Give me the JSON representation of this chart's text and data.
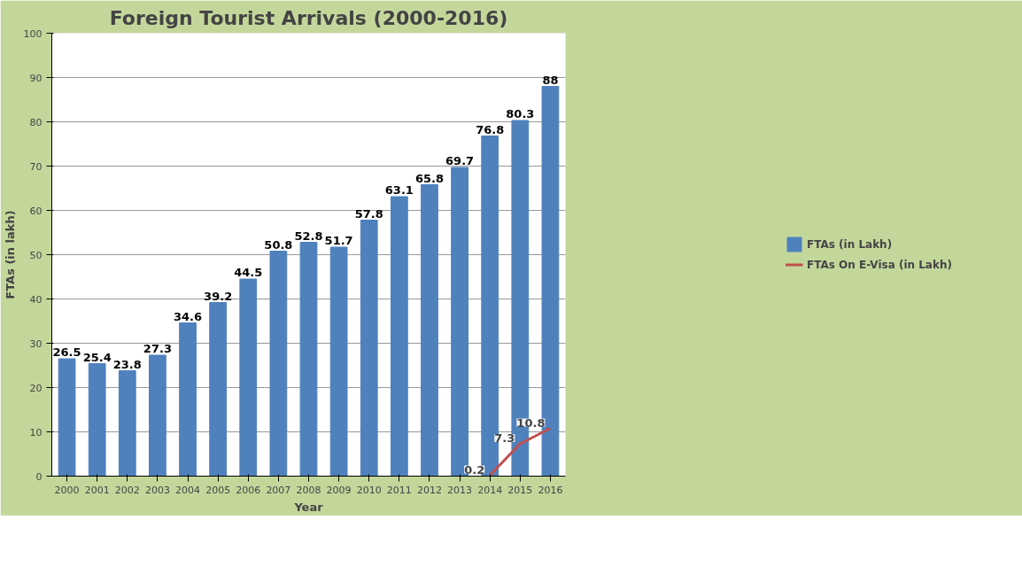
{
  "chart_data": {
    "type": "bar",
    "title": "Foreign Tourist Arrivals (2000-2016)",
    "xlabel": "Year",
    "ylabel": "FTAs (in lakh)",
    "categories": [
      "2000",
      "2001",
      "2002",
      "2003",
      "2004",
      "2005",
      "2006",
      "2007",
      "2008",
      "2009",
      "2010",
      "2011",
      "2012",
      "2013",
      "2014",
      "2015",
      "2016"
    ],
    "series": [
      {
        "name": "FTAs (in Lakh)",
        "color": "#4f81bd",
        "values": [
          26.5,
          25.4,
          23.8,
          27.3,
          34.6,
          39.2,
          44.5,
          50.8,
          52.8,
          51.7,
          57.8,
          63.1,
          65.8,
          69.7,
          76.8,
          80.3,
          88
        ]
      },
      {
        "name": "FTAs On E-Visa (in Lakh)",
        "type": "line",
        "color": "#c0504d",
        "values": [
          null,
          null,
          null,
          null,
          null,
          null,
          null,
          null,
          null,
          null,
          null,
          null,
          null,
          null,
          0.2,
          7.3,
          10.8
        ]
      }
    ],
    "ylim": [
      0,
      100
    ],
    "yticks": [
      0,
      10,
      20,
      30,
      40,
      50,
      60,
      70,
      80,
      90,
      100
    ],
    "grid": "y",
    "legend": "right",
    "data_labels": true
  }
}
